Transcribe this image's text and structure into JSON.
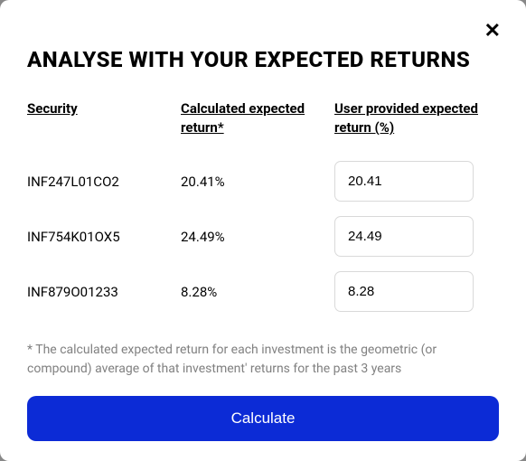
{
  "modal": {
    "title": "ANALYSE WITH YOUR EXPECTED RETURNS",
    "close_label": "✕"
  },
  "table": {
    "headers": {
      "security": "Security",
      "calculated": "Calculated expected return*",
      "user_provided": "User provided expected return (%)"
    },
    "rows": [
      {
        "security": "INF247L01CO2",
        "calculated": "20.41%",
        "user_value": "20.41"
      },
      {
        "security": "INF754K01OX5",
        "calculated": "24.49%",
        "user_value": "24.49"
      },
      {
        "security": "INF879O01233",
        "calculated": "8.28%",
        "user_value": "8.28"
      }
    ]
  },
  "footnote": "* The calculated expected return for each investment is the geometric (or compound) average of that investment' returns for the past 3 years",
  "button": {
    "calculate": "Calculate"
  },
  "style": {
    "accent_color": "#0c2bd6",
    "text_color": "#000000",
    "muted_color": "#808080",
    "border_color": "#d9d9d9",
    "background": "#ffffff"
  }
}
